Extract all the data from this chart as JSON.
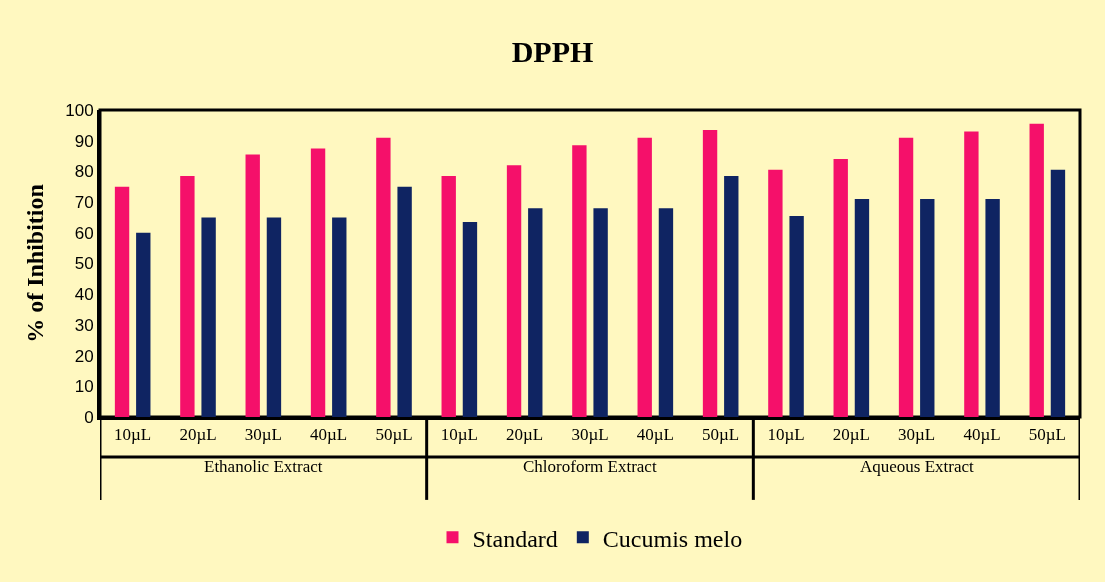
{
  "chart_data": {
    "type": "bar",
    "title": "DPPH",
    "ylabel": "% of Inhibition",
    "categories": [
      "10µL",
      "20µL",
      "30µL",
      "40µL",
      "50µL",
      "10µL",
      "20µL",
      "30µL",
      "40µL",
      "50µL",
      "10µL",
      "20µL",
      "30µL",
      "40µL",
      "50µL"
    ],
    "annotations": [
      "Ethanolic Extract",
      "Chloroform Extract",
      "Aqueous Extract"
    ],
    "series": [
      {
        "name": "Standard",
        "color": "#f5106a",
        "values": [
          75,
          78.5,
          85.5,
          87.5,
          91,
          78.5,
          82,
          88.5,
          91,
          93.5,
          80.5,
          84,
          91,
          93,
          95.5
        ]
      },
      {
        "name": "Cucumis melo",
        "color": "#0f2462",
        "values": [
          60,
          65,
          65,
          65,
          75,
          63.5,
          68,
          68,
          68,
          78.5,
          65.5,
          71,
          71,
          71,
          80.5
        ]
      }
    ],
    "ylim": [
      0,
      100
    ],
    "yticks": [
      0,
      10,
      20,
      30,
      40,
      50,
      60,
      70,
      80,
      90,
      100
    ],
    "grid": false,
    "legend": "bottom"
  }
}
